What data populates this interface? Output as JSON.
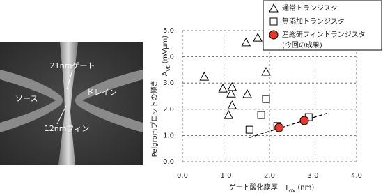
{
  "chart_data": {
    "type": "scatter",
    "y_label": "Pelgromプロットの傾き",
    "y_label2": {
      "main": "A",
      "sub": "vt",
      "unit": " (mVµm)"
    },
    "x_label": {
      "main": "ゲート酸化膜厚　T",
      "sub": "ox",
      "unit": " (nm)"
    },
    "xlim": [
      0,
      4
    ],
    "ylim": [
      0,
      5
    ],
    "xticks": [
      {
        "value": 0,
        "label": "0.0"
      },
      {
        "value": 1,
        "label": "1.0"
      },
      {
        "value": 2,
        "label": "2.0"
      },
      {
        "value": 3,
        "label": "3.0"
      },
      {
        "value": 4,
        "label": "4.0"
      }
    ],
    "yticks": [
      {
        "value": 0,
        "label": "0.0"
      },
      {
        "value": 1,
        "label": "1.0"
      },
      {
        "value": 2,
        "label": "2.0"
      },
      {
        "value": 3,
        "label": "3.0"
      },
      {
        "value": 4,
        "label": "4.0"
      },
      {
        "value": 5,
        "label": "5.0"
      }
    ],
    "grid": true,
    "series": [
      {
        "name": "通常トランジスタ",
        "marker": "triangle",
        "color": "#000000",
        "x": [
          0.5,
          0.93,
          1.12,
          1.14,
          1.14,
          1.06,
          1.46,
          1.73,
          1.49,
          1.92
        ],
        "y": [
          3.24,
          2.79,
          2.6,
          2.85,
          2.15,
          1.78,
          4.55,
          4.73,
          2.58,
          3.43
        ]
      },
      {
        "name": "無添加トランジスタ",
        "marker": "square",
        "color": "#000000",
        "x": [
          1.92,
          1.54,
          1.81,
          2.18,
          2.9
        ],
        "y": [
          2.39,
          1.22,
          1.78,
          1.36,
          1.7
        ]
      },
      {
        "name": "産総研フィントランジスタ",
        "note": "(今回の成果)",
        "marker": "circle",
        "color": "#e8382a",
        "x": [
          2.22,
          2.8
        ],
        "y": [
          1.3,
          1.57
        ]
      }
    ],
    "trendline": {
      "x": [
        1.54,
        3.33
      ],
      "y": [
        0.92,
        1.85
      ]
    }
  },
  "image": {
    "labels": {
      "gate": "21nmゲート",
      "source": "ソース",
      "drain": "ドレイン",
      "fin": "12nmフィン"
    }
  }
}
